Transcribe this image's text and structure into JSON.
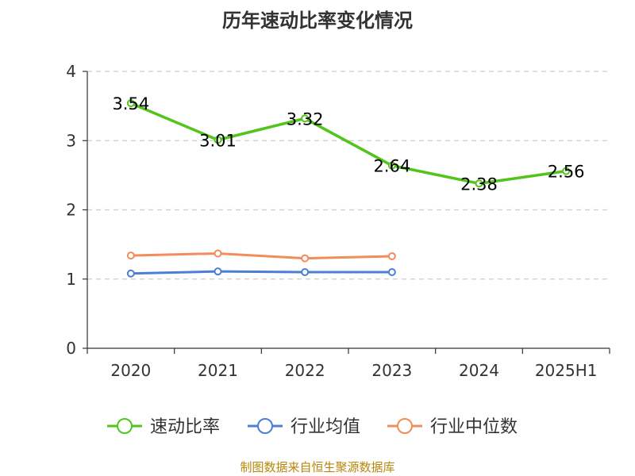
{
  "chart_data": {
    "type": "line",
    "title": "历年速动比率变化情况",
    "categories": [
      "2020",
      "2021",
      "2022",
      "2023",
      "2024",
      "2025H1"
    ],
    "ylim": [
      0,
      4
    ],
    "yticks": [
      "0",
      "1",
      "2",
      "3",
      "4"
    ],
    "grid": true,
    "legend_position": "bottom",
    "series": [
      {
        "name": "速动比率",
        "color": "#52c41a",
        "values": [
          3.54,
          3.01,
          3.32,
          2.64,
          2.38,
          2.56
        ],
        "labels": [
          "3.54",
          "3.01",
          "3.32",
          "2.64",
          "2.38",
          "2.56"
        ]
      },
      {
        "name": "行业均值",
        "color": "#4a7fd4",
        "values": [
          1.08,
          1.11,
          1.1,
          1.1,
          null,
          null
        ]
      },
      {
        "name": "行业中位数",
        "color": "#f28c5a",
        "values": [
          1.34,
          1.37,
          1.3,
          1.33,
          null,
          null
        ]
      }
    ]
  },
  "footer": {
    "source": "制图数据来自恒生聚源数据库"
  }
}
